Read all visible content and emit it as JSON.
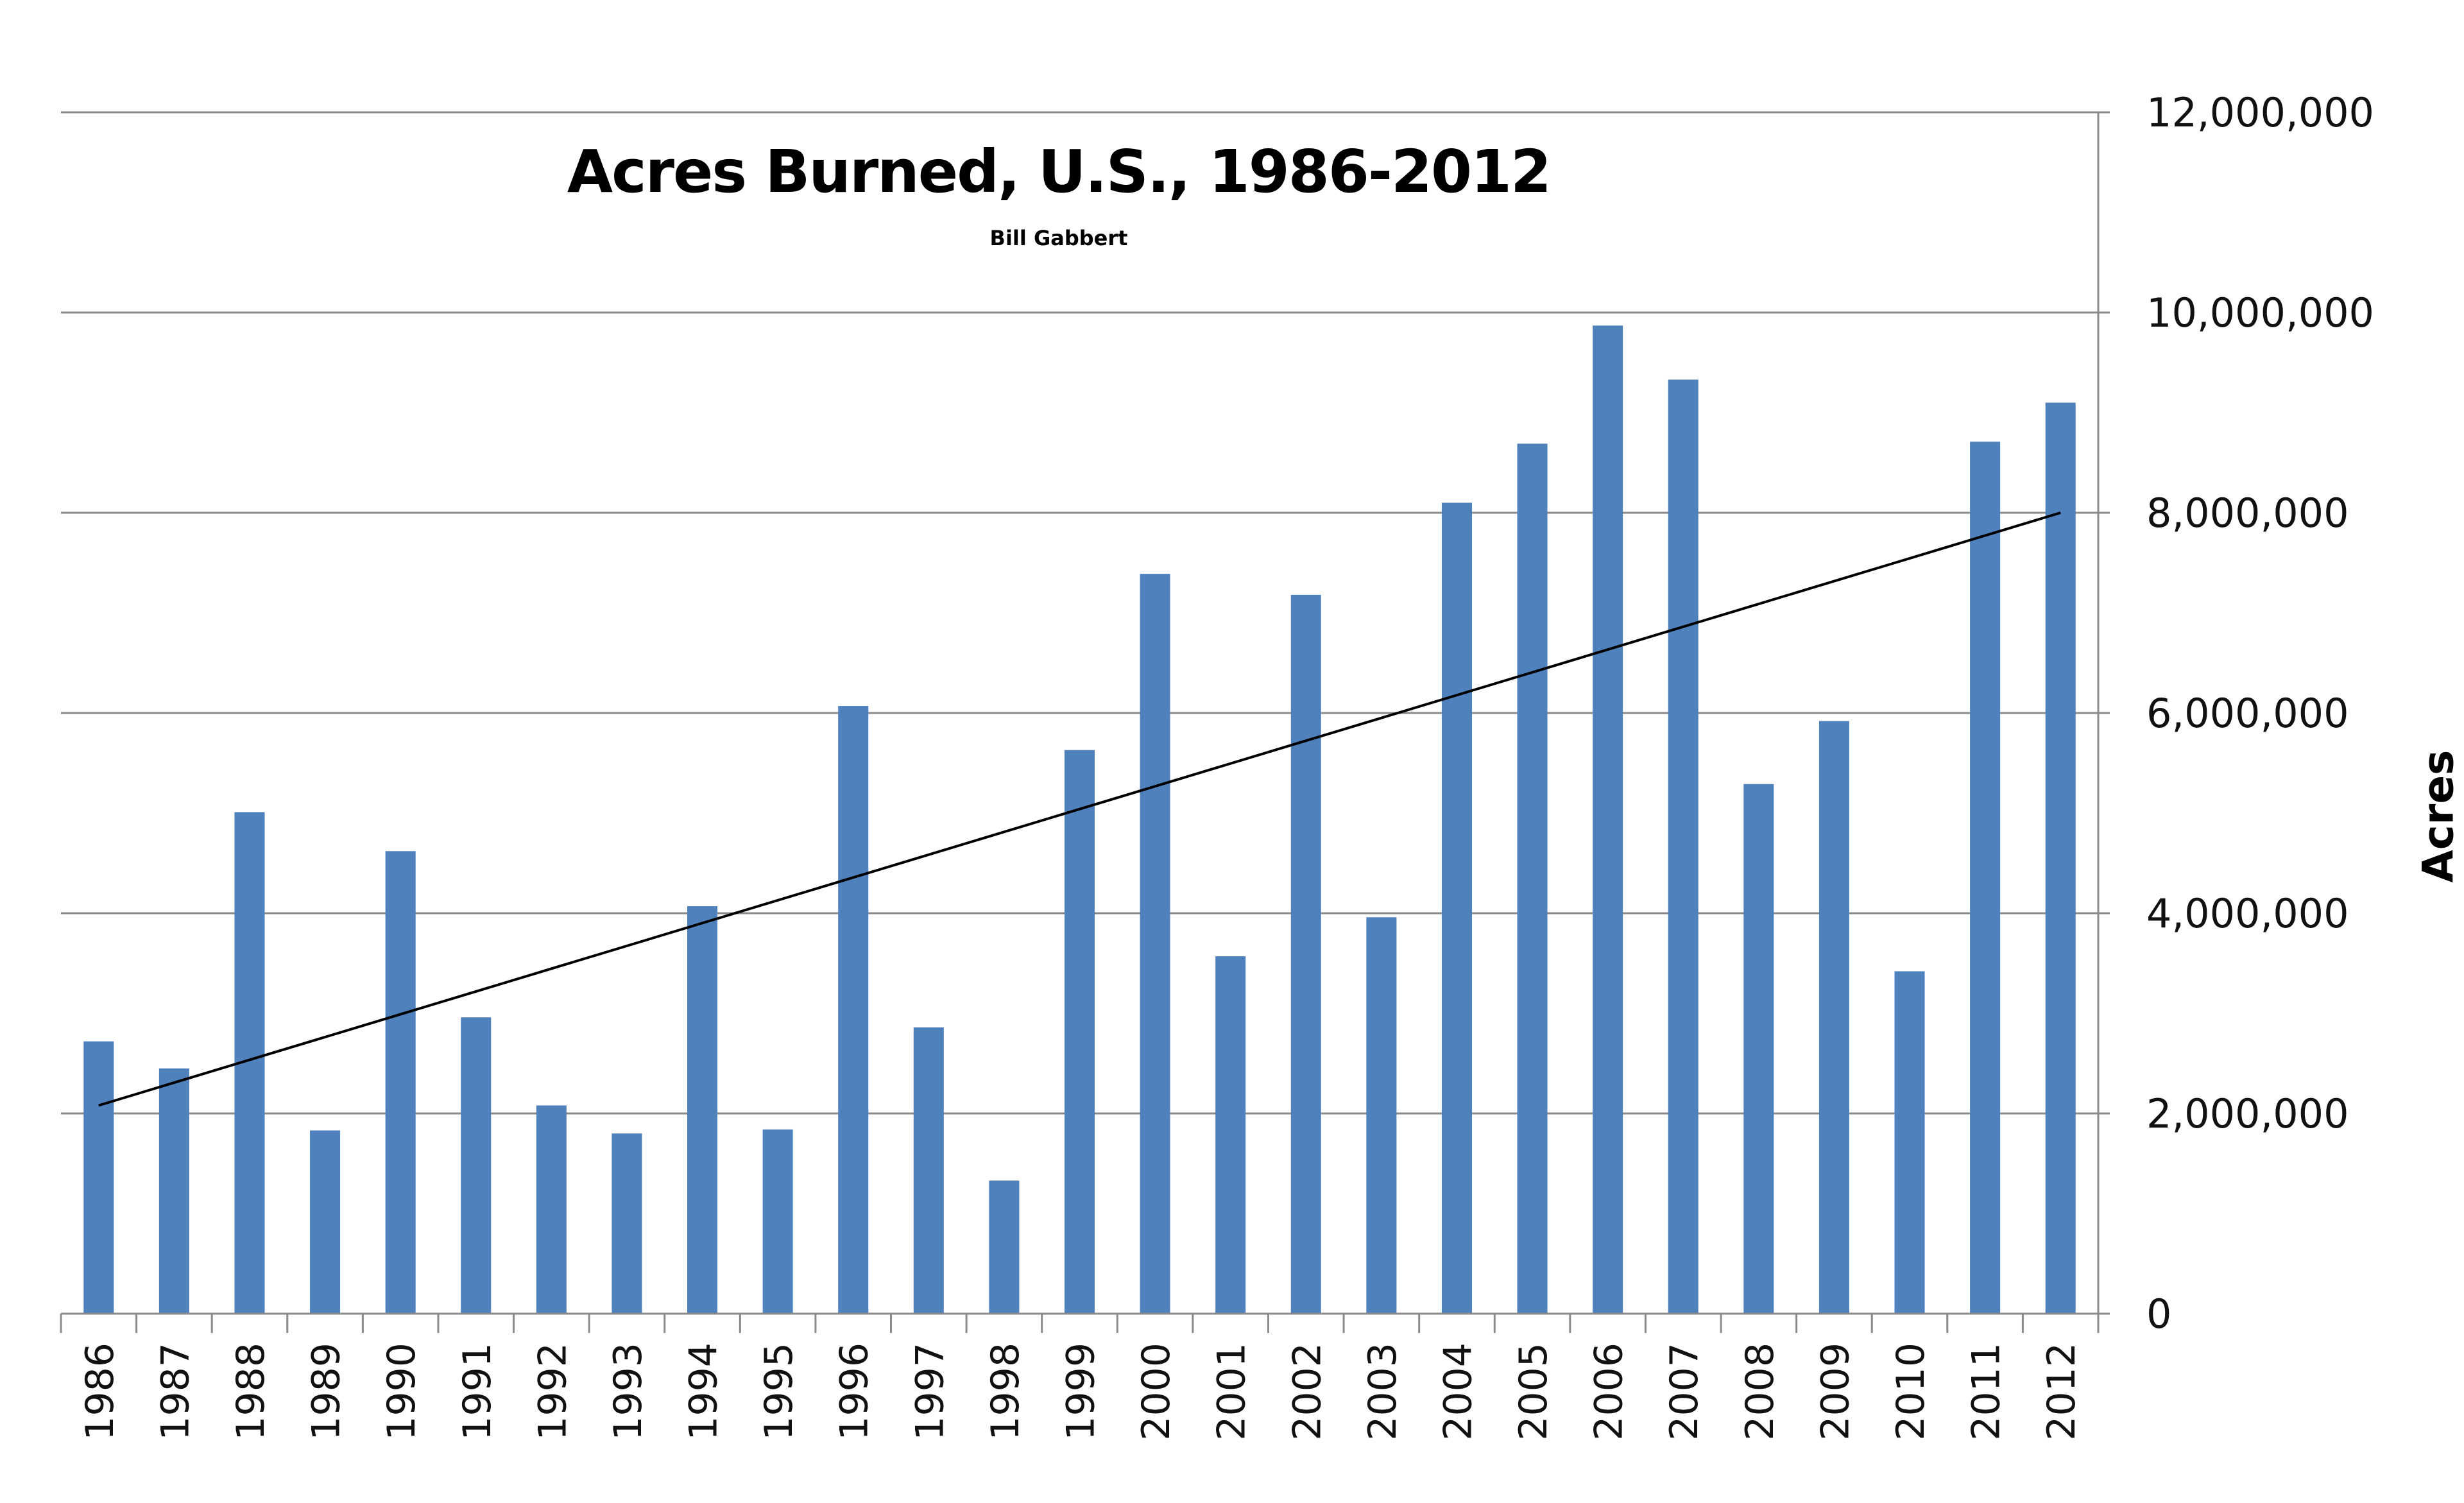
{
  "chart_data": {
    "type": "bar",
    "title": "Acres Burned, U.S., 1986-2012",
    "subtitle": "Bill Gabbert",
    "xlabel": "",
    "ylabel": "Acres",
    "y_axis_side": "right",
    "ylim": [
      0,
      12000000
    ],
    "yticks": [
      0,
      2000000,
      4000000,
      6000000,
      8000000,
      10000000,
      12000000
    ],
    "ytick_labels": [
      "0",
      "2,000,000",
      "4,000,000",
      "6,000,000",
      "8,000,000",
      "10,000,000",
      "12,000,000"
    ],
    "grid": true,
    "bar_color": "#4f81bd",
    "categories": [
      "1986",
      "1987",
      "1988",
      "1989",
      "1990",
      "1991",
      "1992",
      "1993",
      "1994",
      "1995",
      "1996",
      "1997",
      "1998",
      "1999",
      "2000",
      "2001",
      "2002",
      "2003",
      "2004",
      "2005",
      "2006",
      "2007",
      "2008",
      "2009",
      "2010",
      "2011",
      "2012"
    ],
    "values": [
      2720000,
      2450000,
      5010000,
      1830000,
      4620000,
      2960000,
      2080000,
      1800000,
      4070000,
      1840000,
      6070000,
      2860000,
      1330000,
      5630000,
      7390000,
      3570000,
      7180000,
      3960000,
      8100000,
      8690000,
      9870000,
      9330000,
      5290000,
      5920000,
      3420000,
      8710000,
      9100000
    ],
    "trendline": {
      "type": "linear",
      "start": 2080000,
      "end": 8000000,
      "color": "#000000"
    }
  }
}
